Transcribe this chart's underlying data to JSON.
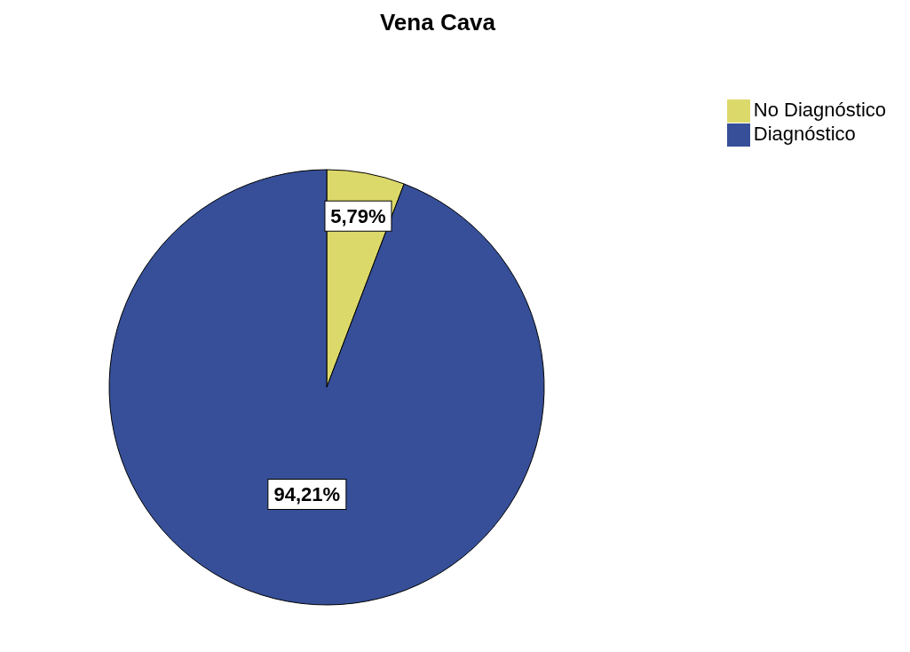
{
  "chart_data": {
    "type": "pie",
    "title": "Vena Cava",
    "categories": [
      "No Diagnóstico",
      "Diagnóstico"
    ],
    "values": [
      5.79,
      94.21
    ],
    "colors": [
      "#dcd96b",
      "#364f98"
    ],
    "value_labels": [
      "5,79%",
      "94,21%"
    ],
    "legend": "top right"
  }
}
